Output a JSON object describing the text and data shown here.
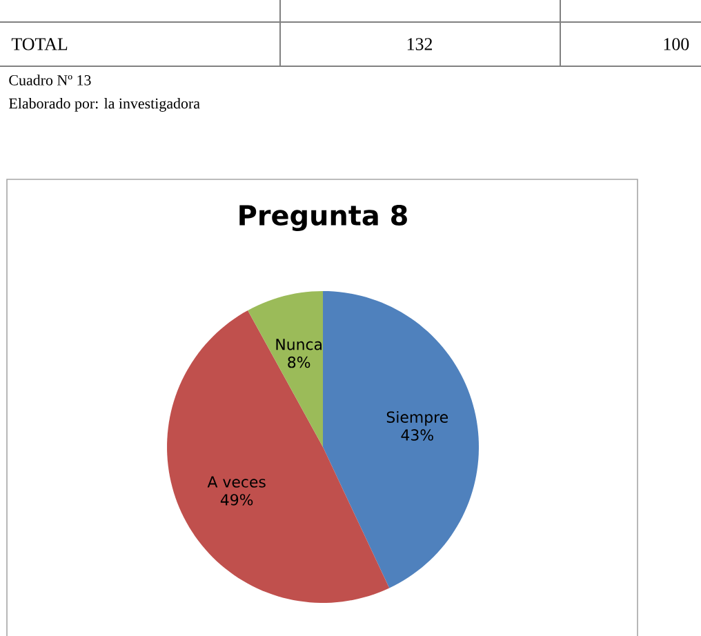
{
  "chart_data": {
    "type": "pie",
    "title": "Pregunta 8",
    "categories": [
      "Siempre",
      "A veces",
      "Nunca"
    ],
    "values": [
      43,
      49,
      8
    ],
    "colors": [
      "#4f81bd",
      "#c0504d",
      "#9bbb59"
    ],
    "value_labels": [
      "43%",
      "49%",
      "8%"
    ],
    "annotations": [
      "TOTAL",
      "132",
      "100",
      "Cuadro Nº 13",
      "Elaborado por: la investigadora"
    ]
  }
}
